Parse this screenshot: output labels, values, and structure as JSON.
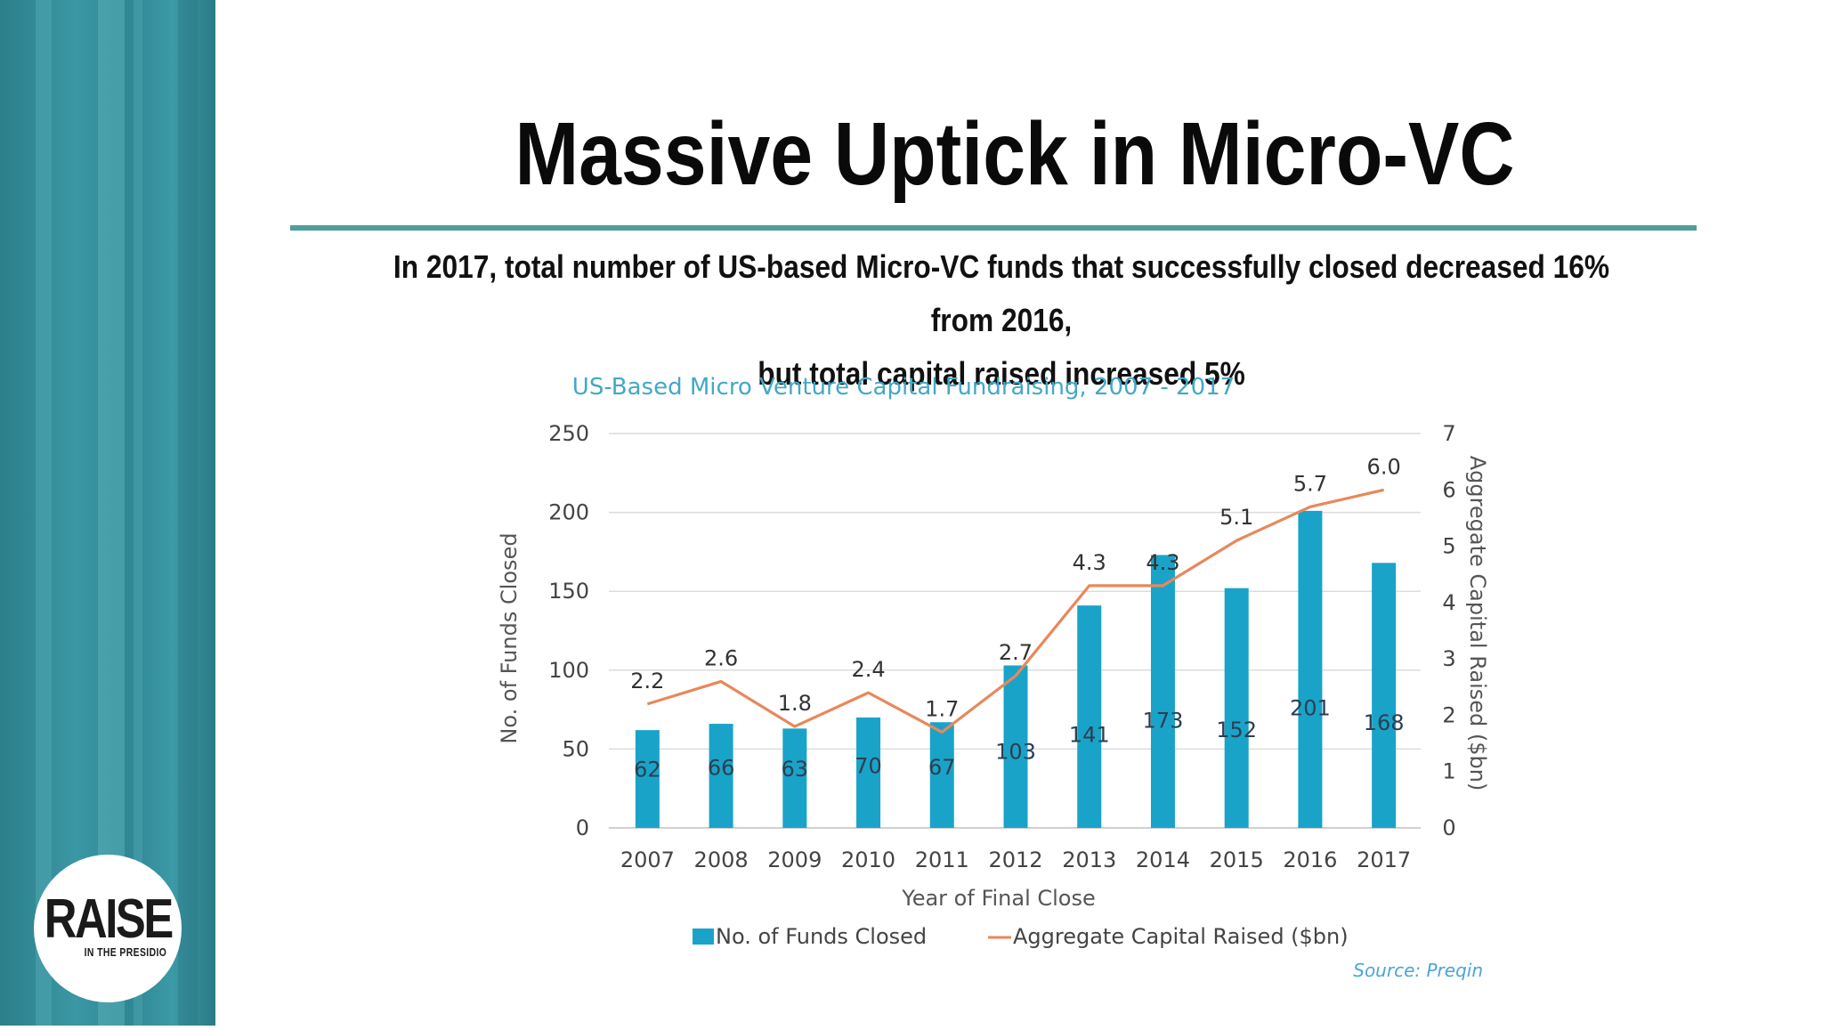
{
  "slide": {
    "title": "Massive Uptick in Micro-VC",
    "subtitle_line1": "In 2017, total number of US-based Micro-VC funds that successfully closed decreased 16% from 2016,",
    "subtitle_line2": "but total capital raised increased 5%",
    "accent_color": "#4d9e9d"
  },
  "logo": {
    "main": "RAISE",
    "sub": "IN THE PRESIDIO"
  },
  "chart_data": {
    "type": "bar",
    "title": "US-Based Micro Venture Capital Fundraising, 2007 - 2017",
    "xlabel": "Year of Final Close",
    "ylabel": "No. of Funds Closed",
    "y2label": "Aggregate Capital Raised ($bn)",
    "categories": [
      "2007",
      "2008",
      "2009",
      "2010",
      "2011",
      "2012",
      "2013",
      "2014",
      "2015",
      "2016",
      "2017"
    ],
    "ylim": [
      0,
      250
    ],
    "y2lim": [
      0,
      7
    ],
    "yticks": [
      0,
      50,
      100,
      150,
      200,
      250
    ],
    "y2ticks": [
      0,
      1,
      2,
      3,
      4,
      5,
      6,
      7
    ],
    "series": [
      {
        "name": "No. of Funds Closed",
        "type": "bar",
        "axis": "left",
        "color": "#1aa3c8",
        "values": [
          62,
          66,
          63,
          70,
          67,
          103,
          141,
          173,
          152,
          201,
          168
        ],
        "labels": [
          "62",
          "66",
          "63",
          "70",
          "67",
          "103",
          "141",
          "173",
          "152",
          "201",
          "168"
        ]
      },
      {
        "name": "Aggregate Capital Raised ($bn)",
        "type": "line",
        "axis": "right",
        "color": "#e8885a",
        "values": [
          2.2,
          2.6,
          1.8,
          2.4,
          1.7,
          2.7,
          4.3,
          4.3,
          5.1,
          5.7,
          6.0
        ],
        "labels": [
          "2.2",
          "2.6",
          "1.8",
          "2.4",
          "1.7",
          "2.7",
          "4.3",
          "4.3",
          "5.1",
          "5.7",
          "6.0"
        ]
      }
    ],
    "grid": true,
    "legend_position": "bottom",
    "source": "Source: Preqin"
  }
}
